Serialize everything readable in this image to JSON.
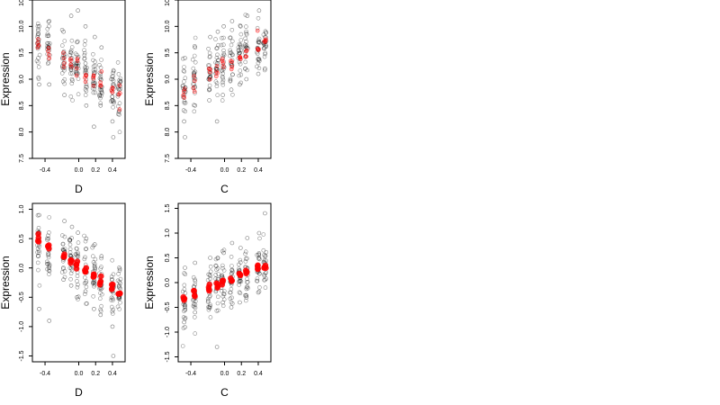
{
  "chart_data": [
    {
      "type": "scatter",
      "panel": "top-left",
      "xlabel": "D",
      "ylabel": "Expression",
      "xlim": [
        -0.55,
        0.55
      ],
      "ylim": [
        7.5,
        10.5
      ],
      "xticks": [
        "-0.4",
        "0.0",
        "0.2",
        "0.4"
      ],
      "yticks": [
        "7.5",
        "8.0",
        "8.5",
        "9.0",
        "9.5",
        "10.0",
        "10.5"
      ],
      "grid": false,
      "colors": {
        "observed": "#000000",
        "fitted": "#ff0000"
      },
      "x_levels": [
        -0.48,
        -0.36,
        -0.18,
        -0.09,
        -0.02,
        0.08,
        0.18,
        0.26,
        0.4,
        0.48
      ],
      "series": [
        {
          "role": "observed",
          "points": [
            [
              -0.48,
              9.7
            ],
            [
              -0.48,
              9.4
            ],
            [
              -0.47,
              10.0
            ],
            [
              -0.47,
              8.9
            ],
            [
              -0.36,
              9.6
            ],
            [
              -0.35,
              8.9
            ],
            [
              -0.35,
              10.1
            ],
            [
              -0.18,
              9.9
            ],
            [
              -0.18,
              9.3
            ],
            [
              -0.17,
              8.7
            ],
            [
              -0.09,
              9.5
            ],
            [
              -0.09,
              10.2
            ],
            [
              -0.08,
              9.0
            ],
            [
              -0.02,
              9.7
            ],
            [
              -0.02,
              9.1
            ],
            [
              -0.01,
              10.3
            ],
            [
              0.08,
              10.0
            ],
            [
              0.08,
              9.3
            ],
            [
              0.09,
              8.5
            ],
            [
              0.18,
              9.1
            ],
            [
              0.18,
              8.1
            ],
            [
              0.19,
              9.8
            ],
            [
              0.26,
              9.1
            ],
            [
              0.26,
              8.5
            ],
            [
              0.27,
              9.6
            ],
            [
              0.4,
              9.0
            ],
            [
              0.4,
              8.2
            ],
            [
              0.41,
              7.9
            ],
            [
              0.48,
              8.8
            ],
            [
              0.48,
              8.4
            ]
          ]
        },
        {
          "role": "fitted",
          "values": [
            [
              -0.48,
              9.7
            ],
            [
              -0.36,
              9.55
            ],
            [
              -0.18,
              9.4
            ],
            [
              -0.09,
              9.3
            ],
            [
              -0.02,
              9.25
            ],
            [
              0.08,
              9.15
            ],
            [
              0.18,
              9.0
            ],
            [
              0.26,
              8.9
            ],
            [
              0.4,
              8.8
            ],
            [
              0.48,
              8.7
            ]
          ]
        }
      ]
    },
    {
      "type": "scatter",
      "panel": "top-right",
      "xlabel": "C",
      "ylabel": "Expression",
      "xlim": [
        -0.55,
        0.55
      ],
      "ylim": [
        7.5,
        10.5
      ],
      "xticks": [
        "-0.4",
        "0.0",
        "0.2",
        "0.4"
      ],
      "yticks": [
        "7.5",
        "8.0",
        "8.5",
        "9.0",
        "9.5",
        "10.0",
        "10.5"
      ],
      "grid": false,
      "colors": {
        "observed": "#000000",
        "fitted": "#ff0000"
      },
      "x_levels": [
        -0.48,
        -0.36,
        -0.18,
        -0.09,
        -0.02,
        0.08,
        0.18,
        0.26,
        0.4,
        0.48
      ],
      "series": [
        {
          "role": "observed",
          "points": [
            [
              -0.48,
              8.8
            ],
            [
              -0.48,
              8.2
            ],
            [
              -0.47,
              9.4
            ],
            [
              -0.47,
              7.9
            ],
            [
              -0.36,
              9.1
            ],
            [
              -0.35,
              8.5
            ],
            [
              -0.35,
              9.6
            ],
            [
              -0.18,
              9.2
            ],
            [
              -0.18,
              8.6
            ],
            [
              -0.17,
              9.8
            ],
            [
              -0.09,
              9.3
            ],
            [
              -0.09,
              8.2
            ],
            [
              -0.08,
              9.9
            ],
            [
              -0.02,
              9.4
            ],
            [
              -0.02,
              8.7
            ],
            [
              -0.01,
              10.0
            ],
            [
              0.08,
              9.5
            ],
            [
              0.08,
              8.8
            ],
            [
              0.09,
              10.1
            ],
            [
              0.18,
              9.5
            ],
            [
              0.18,
              8.9
            ],
            [
              0.19,
              10.0
            ],
            [
              0.26,
              9.6
            ],
            [
              0.26,
              9.0
            ],
            [
              0.27,
              10.2
            ],
            [
              0.4,
              9.7
            ],
            [
              0.4,
              9.1
            ],
            [
              0.41,
              10.3
            ],
            [
              0.48,
              9.8
            ],
            [
              0.48,
              9.2
            ]
          ]
        },
        {
          "role": "fitted",
          "values": [
            [
              -0.48,
              8.8
            ],
            [
              -0.36,
              8.95
            ],
            [
              -0.18,
              9.1
            ],
            [
              -0.09,
              9.2
            ],
            [
              -0.02,
              9.25
            ],
            [
              0.08,
              9.35
            ],
            [
              0.18,
              9.45
            ],
            [
              0.26,
              9.5
            ],
            [
              0.4,
              9.6
            ],
            [
              0.48,
              9.7
            ]
          ]
        }
      ]
    },
    {
      "type": "scatter",
      "panel": "bottom-left",
      "xlabel": "D",
      "ylabel": "Expression",
      "xlim": [
        -0.55,
        0.55
      ],
      "ylim": [
        -1.6,
        1.1
      ],
      "xticks": [
        "-0.4",
        "0.0",
        "0.2",
        "0.4"
      ],
      "yticks": [
        "-1.5",
        "-1.0",
        "-0.5",
        "0.0",
        "0.5",
        "1.0"
      ],
      "grid": false,
      "colors": {
        "observed": "#000000",
        "fitted": "#ff0000"
      },
      "x_levels": [
        -0.48,
        -0.36,
        -0.18,
        -0.09,
        -0.02,
        0.08,
        0.18,
        0.26,
        0.4,
        0.48
      ],
      "series": [
        {
          "role": "observed",
          "points": [
            [
              -0.48,
              0.6
            ],
            [
              -0.48,
              0.2
            ],
            [
              -0.47,
              0.9
            ],
            [
              -0.47,
              -0.7
            ],
            [
              -0.36,
              0.5
            ],
            [
              -0.35,
              0.0
            ],
            [
              -0.35,
              -0.9
            ],
            [
              -0.18,
              0.3
            ],
            [
              -0.18,
              -0.2
            ],
            [
              -0.17,
              0.8
            ],
            [
              -0.09,
              0.2
            ],
            [
              -0.09,
              -0.3
            ],
            [
              -0.08,
              0.7
            ],
            [
              -0.02,
              0.1
            ],
            [
              -0.02,
              -0.5
            ],
            [
              -0.01,
              0.6
            ],
            [
              0.08,
              0.0
            ],
            [
              0.08,
              -0.4
            ],
            [
              0.09,
              0.5
            ],
            [
              0.18,
              -0.2
            ],
            [
              0.18,
              -0.7
            ],
            [
              0.19,
              0.4
            ],
            [
              0.26,
              -0.3
            ],
            [
              0.26,
              -0.8
            ],
            [
              0.27,
              0.2
            ],
            [
              0.4,
              -0.4
            ],
            [
              0.4,
              -1.0
            ],
            [
              0.41,
              -1.5
            ],
            [
              0.48,
              -0.5
            ],
            [
              0.48,
              -0.3
            ]
          ]
        },
        {
          "role": "fitted",
          "values": [
            [
              -0.48,
              0.5
            ],
            [
              -0.36,
              0.35
            ],
            [
              -0.18,
              0.2
            ],
            [
              -0.09,
              0.1
            ],
            [
              -0.02,
              0.05
            ],
            [
              0.08,
              -0.05
            ],
            [
              0.18,
              -0.15
            ],
            [
              0.26,
              -0.25
            ],
            [
              0.4,
              -0.35
            ],
            [
              0.48,
              -0.45
            ]
          ]
        }
      ]
    },
    {
      "type": "scatter",
      "panel": "bottom-right",
      "xlabel": "C",
      "ylabel": "Expression",
      "xlim": [
        -0.55,
        0.55
      ],
      "ylim": [
        -1.6,
        1.6
      ],
      "xticks": [
        "-0.4",
        "0.0",
        "0.2",
        "0.4"
      ],
      "yticks": [
        "-1.5",
        "-1.0",
        "-0.5",
        "0.0",
        "0.5",
        "1.0",
        "1.5"
      ],
      "grid": false,
      "colors": {
        "observed": "#000000",
        "fitted": "#ff0000"
      },
      "x_levels": [
        -0.48,
        -0.36,
        -0.18,
        -0.09,
        -0.02,
        0.08,
        0.18,
        0.26,
        0.4,
        0.48
      ],
      "series": [
        {
          "role": "observed",
          "points": [
            [
              -0.48,
              -0.3
            ],
            [
              -0.48,
              -0.8
            ],
            [
              -0.47,
              0.3
            ],
            [
              -0.47,
              -0.9
            ],
            [
              -0.36,
              -0.2
            ],
            [
              -0.35,
              -0.6
            ],
            [
              -0.35,
              0.4
            ],
            [
              -0.18,
              -0.1
            ],
            [
              -0.18,
              -0.5
            ],
            [
              -0.17,
              0.5
            ],
            [
              -0.09,
              0.0
            ],
            [
              -0.09,
              -1.3
            ],
            [
              -0.08,
              0.5
            ],
            [
              -0.02,
              0.0
            ],
            [
              -0.02,
              -0.4
            ],
            [
              -0.01,
              0.6
            ],
            [
              0.08,
              0.1
            ],
            [
              0.08,
              -0.5
            ],
            [
              0.09,
              0.8
            ],
            [
              0.18,
              0.1
            ],
            [
              0.18,
              -0.4
            ],
            [
              0.19,
              0.7
            ],
            [
              0.26,
              0.2
            ],
            [
              0.26,
              -0.3
            ],
            [
              0.27,
              0.9
            ],
            [
              0.4,
              0.3
            ],
            [
              0.4,
              -0.2
            ],
            [
              0.41,
              1.0
            ],
            [
              0.48,
              0.4
            ],
            [
              0.48,
              1.4
            ]
          ]
        },
        {
          "role": "fitted",
          "values": [
            [
              -0.48,
              -0.3
            ],
            [
              -0.36,
              -0.25
            ],
            [
              -0.18,
              -0.15
            ],
            [
              -0.09,
              -0.05
            ],
            [
              -0.02,
              0.0
            ],
            [
              0.08,
              0.05
            ],
            [
              0.18,
              0.15
            ],
            [
              0.26,
              0.2
            ],
            [
              0.4,
              0.28
            ],
            [
              0.48,
              0.32
            ]
          ]
        }
      ]
    }
  ]
}
